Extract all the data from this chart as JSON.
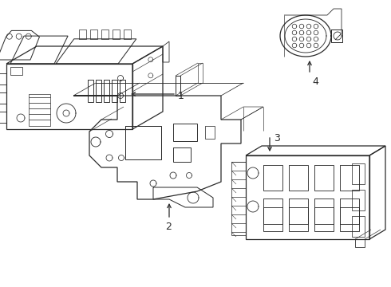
{
  "background_color": "#ffffff",
  "line_color": "#2a2a2a",
  "line_width": 0.9,
  "label_color": "#111111",
  "label_fontsize": 9,
  "figsize": [
    4.9,
    3.6
  ],
  "dpi": 100
}
